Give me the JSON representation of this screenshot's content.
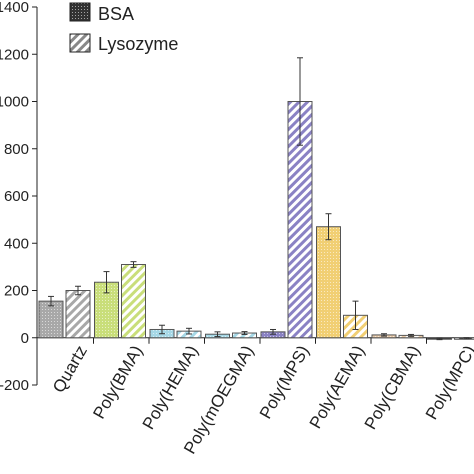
{
  "chart_data": {
    "type": "bar",
    "title": "",
    "xlabel": "",
    "ylabel": "",
    "ylim": [
      -200,
      1400
    ],
    "yticks": [
      "-200",
      "0",
      "200",
      "400",
      "600",
      "800",
      "1000",
      "1200",
      "1400"
    ],
    "categories": [
      "Quartz",
      "Poly(BMA)",
      "Poly(HEMA)",
      "Poly(mOEGMA)",
      "Poly(MPS)",
      "Poly(AEMA)",
      "Poly(CBMA)",
      "Poly(MPC)"
    ],
    "category_colors": [
      "#a8a8a8",
      "#c9de7a",
      "#a6d8e6",
      "#a6d8e6",
      "#8a82c4",
      "#f1cf73",
      "#e8c9a6",
      "#333333"
    ],
    "series": [
      {
        "name": "BSA",
        "pattern": "dotted",
        "values": [
          155,
          235,
          35,
          15,
          25,
          470,
          12,
          -5
        ],
        "errors": [
          20,
          45,
          18,
          10,
          10,
          55,
          5,
          3
        ]
      },
      {
        "name": "Lysozyme",
        "pattern": "hatched",
        "values": [
          200,
          310,
          28,
          20,
          1000,
          95,
          10,
          -2
        ],
        "errors": [
          18,
          12,
          12,
          6,
          185,
          60,
          4,
          2
        ]
      }
    ],
    "legend": {
      "position": "top-center"
    },
    "grid": false
  }
}
